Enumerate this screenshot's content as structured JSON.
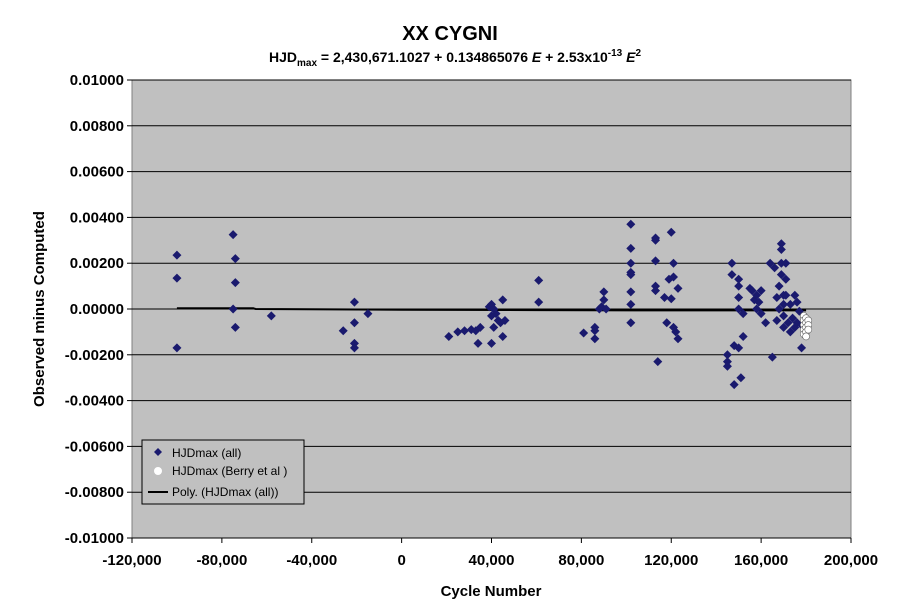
{
  "chart_data": {
    "type": "scatter",
    "title": "XX CYGNI",
    "subtitle": {
      "prefix": "HJD",
      "prefix_sub": "max",
      "eq1": " = 2,430,671.1027 + 0.134865076 ",
      "var1": "E",
      "eq2": " + 2.53x10",
      "exp1": "-13",
      "var2": "E",
      "exp2": "2"
    },
    "xlabel": "Cycle Number",
    "ylabel": "Observed minus Computed",
    "xlim": [
      -120000,
      200000
    ],
    "ylim": [
      -0.01,
      0.01
    ],
    "x_ticks": [
      -120000,
      -80000,
      -40000,
      0,
      40000,
      80000,
      120000,
      160000,
      200000
    ],
    "x_tick_labels": [
      "-120,000",
      "-80,000",
      "-40,000",
      "0",
      "40,000",
      "80,000",
      "120,000",
      "160,000",
      "200,000"
    ],
    "y_ticks": [
      0.01,
      0.008,
      0.006,
      0.004,
      0.002,
      0,
      -0.002,
      -0.004,
      -0.006,
      -0.008,
      -0.01
    ],
    "y_tick_labels": [
      "0.01000",
      "0.00800",
      "0.00600",
      "0.00400",
      "0.00200",
      "0.00000",
      "-0.00200",
      "-0.00400",
      "-0.00600",
      "-0.00800",
      "-0.01000"
    ],
    "grid": "horizontal",
    "plot_background": "#c0c0c0",
    "legend_position": "bottom-left",
    "series": [
      {
        "name": "HJDmax (all)",
        "marker": "diamond",
        "color": "#1a1a6e",
        "points": [
          [
            -100000,
            0.00235
          ],
          [
            -100000,
            0.00135
          ],
          [
            -100000,
            -0.0017
          ],
          [
            -75000,
            0.00325
          ],
          [
            -74000,
            0.0022
          ],
          [
            -74000,
            0.00115
          ],
          [
            -75000,
            0.0
          ],
          [
            -74000,
            -0.0008
          ],
          [
            -58000,
            -0.0003
          ],
          [
            -26000,
            -0.00095
          ],
          [
            -21000,
            0.0003
          ],
          [
            -21000,
            -0.0006
          ],
          [
            -21000,
            -0.0015
          ],
          [
            -21000,
            -0.0017
          ],
          [
            -15000,
            -0.0002
          ],
          [
            21000,
            -0.0012
          ],
          [
            25000,
            -0.001
          ],
          [
            28000,
            -0.00095
          ],
          [
            31000,
            -0.0009
          ],
          [
            33000,
            -0.00095
          ],
          [
            34000,
            -0.0015
          ],
          [
            35000,
            -0.0008
          ],
          [
            39000,
            0.0001
          ],
          [
            40000,
            0.0002
          ],
          [
            41000,
            0.0
          ],
          [
            40000,
            -0.0003
          ],
          [
            41000,
            -0.0008
          ],
          [
            40000,
            -0.0015
          ],
          [
            42000,
            -0.0002
          ],
          [
            43000,
            -0.0005
          ],
          [
            44000,
            -0.0006
          ],
          [
            45000,
            0.0004
          ],
          [
            45000,
            -0.0012
          ],
          [
            46000,
            -0.0005
          ],
          [
            61000,
            0.00125
          ],
          [
            61000,
            0.0003
          ],
          [
            81000,
            -0.00105
          ],
          [
            86000,
            -0.0008
          ],
          [
            86000,
            -0.0013
          ],
          [
            86000,
            -0.00095
          ],
          [
            88000,
            0.0
          ],
          [
            89000,
            0.0001
          ],
          [
            90000,
            0.0004
          ],
          [
            90000,
            0.00075
          ],
          [
            91000,
            0.0
          ],
          [
            102000,
            0.0037
          ],
          [
            102000,
            0.00265
          ],
          [
            102000,
            0.002
          ],
          [
            102000,
            0.0016
          ],
          [
            102000,
            0.0015
          ],
          [
            102000,
            0.00075
          ],
          [
            102000,
            0.0002
          ],
          [
            102000,
            -0.0006
          ],
          [
            113000,
            0.0031
          ],
          [
            113000,
            0.003
          ],
          [
            113000,
            0.0021
          ],
          [
            113000,
            0.001
          ],
          [
            113000,
            0.0008
          ],
          [
            114000,
            -0.0023
          ],
          [
            117000,
            0.0005
          ],
          [
            118000,
            -0.0006
          ],
          [
            119000,
            0.0013
          ],
          [
            120000,
            0.00045
          ],
          [
            120000,
            0.00335
          ],
          [
            121000,
            0.002
          ],
          [
            121000,
            0.0014
          ],
          [
            121000,
            -0.0008
          ],
          [
            122000,
            -0.001
          ],
          [
            123000,
            0.0009
          ],
          [
            123000,
            -0.0013
          ],
          [
            145000,
            -0.002
          ],
          [
            145000,
            -0.0023
          ],
          [
            145000,
            -0.0025
          ],
          [
            147000,
            0.002
          ],
          [
            147000,
            0.0015
          ],
          [
            148000,
            -0.0016
          ],
          [
            148000,
            -0.0033
          ],
          [
            150000,
            0.0013
          ],
          [
            150000,
            0.001
          ],
          [
            150000,
            0.0005
          ],
          [
            150000,
            0.0
          ],
          [
            150000,
            -0.0017
          ],
          [
            151000,
            -0.003
          ],
          [
            152000,
            -0.0002
          ],
          [
            152000,
            -0.0012
          ],
          [
            155000,
            0.0009
          ],
          [
            156000,
            0.0008
          ],
          [
            157000,
            0.0004
          ],
          [
            158000,
            0.0
          ],
          [
            158000,
            0.0006
          ],
          [
            159000,
            0.0003
          ],
          [
            160000,
            0.0008
          ],
          [
            160000,
            -0.0002
          ],
          [
            162000,
            -0.0006
          ],
          [
            164000,
            0.002
          ],
          [
            165000,
            -0.0021
          ],
          [
            166000,
            0.0018
          ],
          [
            167000,
            0.0005
          ],
          [
            167000,
            -0.0005
          ],
          [
            168000,
            0.001
          ],
          [
            168000,
            0.0
          ],
          [
            169000,
            0.00285
          ],
          [
            169000,
            0.0026
          ],
          [
            169000,
            0.002
          ],
          [
            169000,
            0.0015
          ],
          [
            170000,
            0.0006
          ],
          [
            170000,
            0.0002
          ],
          [
            170000,
            -0.0003
          ],
          [
            170000,
            -0.0008
          ],
          [
            171000,
            0.002
          ],
          [
            171000,
            0.0013
          ],
          [
            171000,
            0.0006
          ],
          [
            172000,
            -0.0006
          ],
          [
            173000,
            0.0002
          ],
          [
            173000,
            -0.001
          ],
          [
            174000,
            -0.0004
          ],
          [
            175000,
            0.0006
          ],
          [
            175000,
            -0.0008
          ],
          [
            176000,
            0.0003
          ],
          [
            176000,
            -0.0006
          ],
          [
            177000,
            -0.0001
          ],
          [
            178000,
            -0.0017
          ],
          [
            178000,
            -0.0007
          ]
        ]
      },
      {
        "name": "HJDmax (Berry et al )",
        "marker": "circle",
        "color": "#ffffff",
        "points": [
          [
            179000,
            -0.0003
          ],
          [
            179000,
            -0.0005
          ],
          [
            179000,
            -0.0007
          ],
          [
            179000,
            -0.0009
          ],
          [
            179000,
            -0.0011
          ],
          [
            180000,
            -0.0004
          ],
          [
            180000,
            -0.0006
          ],
          [
            180000,
            -0.0008
          ],
          [
            180000,
            -0.001
          ],
          [
            180000,
            -0.0012
          ],
          [
            181000,
            -0.0005
          ],
          [
            181000,
            -0.0007
          ],
          [
            181000,
            -0.0009
          ]
        ]
      },
      {
        "name": "Poly. (HJDmax (all))",
        "marker": "line",
        "color": "#000000",
        "points": [
          [
            -100000,
            3e-05
          ],
          [
            -66000,
            3e-05
          ],
          [
            -65000,
            0.0
          ],
          [
            -20000,
            -2e-05
          ],
          [
            0,
            -3e-05
          ],
          [
            60000,
            -5e-05
          ],
          [
            120000,
            -6e-05
          ],
          [
            180000,
            -6e-05
          ]
        ]
      }
    ]
  }
}
